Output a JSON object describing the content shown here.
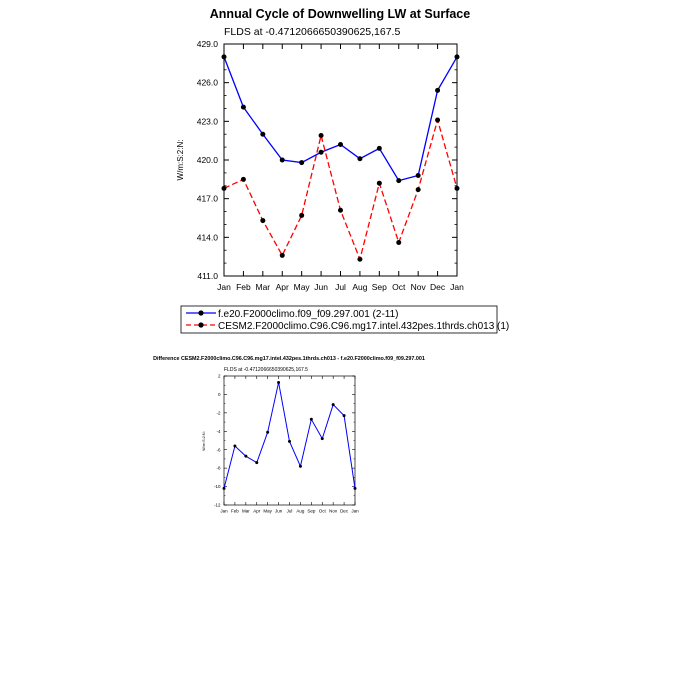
{
  "chart_data": [
    {
      "type": "line",
      "title": "Annual Cycle of Downwelling LW at Surface",
      "subtitle": "FLDS at -0.4712066650390625,167.5",
      "ylabel": "W/m:S:2:N:",
      "categories": [
        "Jan",
        "Feb",
        "Mar",
        "Apr",
        "May",
        "Jun",
        "Jul",
        "Aug",
        "Sep",
        "Oct",
        "Nov",
        "Dec",
        "Jan"
      ],
      "yticks": [
        "411.0",
        "414.0",
        "417.0",
        "420.0",
        "423.0",
        "426.0",
        "429.0"
      ],
      "ylim": [
        411,
        429
      ],
      "series": [
        {
          "name": "f.e20.F2000climo.f09_f09.297.001 (2-11)",
          "color": "#0000ff",
          "dash": "solid",
          "values": [
            428.0,
            424.1,
            422.0,
            420.0,
            419.8,
            420.6,
            421.2,
            420.1,
            420.9,
            418.4,
            418.8,
            425.4,
            428.0
          ]
        },
        {
          "name": "CESM2.F2000climo.C96.C96.mg17.intel.432pes.1thrds.ch013 (1)",
          "color": "#ff0000",
          "dash": "dashed",
          "values": [
            417.8,
            418.5,
            415.3,
            412.6,
            415.7,
            421.9,
            416.1,
            412.3,
            418.2,
            413.6,
            417.7,
            423.1,
            417.8
          ]
        }
      ],
      "legend_position": "bottom"
    },
    {
      "type": "line",
      "title": "Difference CESM2.F2000climo.C96.C96.mg17.intel.432pes.1thrds.ch013 - f.e20.F2000climo.f09_f09.297.001",
      "subtitle": "FLDS at -0.4712066650390625,167.5",
      "ylabel": "W/m:S:2:N:",
      "categories": [
        "Jan",
        "Feb",
        "Mar",
        "Apr",
        "May",
        "Jun",
        "Jul",
        "Aug",
        "Sep",
        "Oct",
        "Nov",
        "Dec",
        "Jan"
      ],
      "yticks": [
        "-12",
        "-10",
        "-8",
        "-6",
        "-4",
        "-2",
        "0",
        "2"
      ],
      "ylim": [
        -12,
        2
      ],
      "series": [
        {
          "color": "#0000ff",
          "dash": "solid",
          "values": [
            -10.2,
            -5.6,
            -6.7,
            -7.4,
            -4.1,
            1.3,
            -5.1,
            -7.8,
            -2.7,
            -4.8,
            -1.1,
            -2.3,
            -10.2
          ]
        }
      ]
    }
  ]
}
